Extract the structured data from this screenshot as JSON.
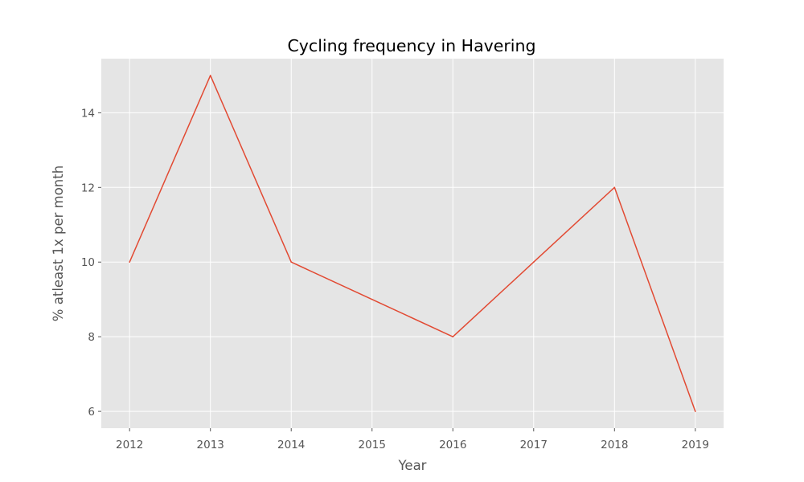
{
  "chart_data": {
    "type": "line",
    "title": "Cycling frequency in Havering",
    "xlabel": "Year",
    "ylabel": "% atleast 1x per month",
    "x": [
      2012,
      2013,
      2014,
      2015,
      2016,
      2017,
      2018,
      2019
    ],
    "x_tick_labels": [
      "2012",
      "2013",
      "2014",
      "2015",
      "2016",
      "2017",
      "2018",
      "2019"
    ],
    "y_ticks": [
      6,
      8,
      10,
      12,
      14
    ],
    "y_tick_labels": [
      "6",
      "8",
      "10",
      "12",
      "14"
    ],
    "xlim": [
      2011.65,
      2019.35
    ],
    "ylim": [
      5.55,
      15.45
    ],
    "grid": true,
    "series": [
      {
        "values": [
          10,
          15,
          10,
          9,
          8,
          10,
          12,
          6
        ],
        "color": "#E24A33"
      }
    ],
    "colors": {
      "plot_background": "#E5E5E5",
      "grid": "#FFFFFF",
      "line": "#E24A33"
    }
  }
}
